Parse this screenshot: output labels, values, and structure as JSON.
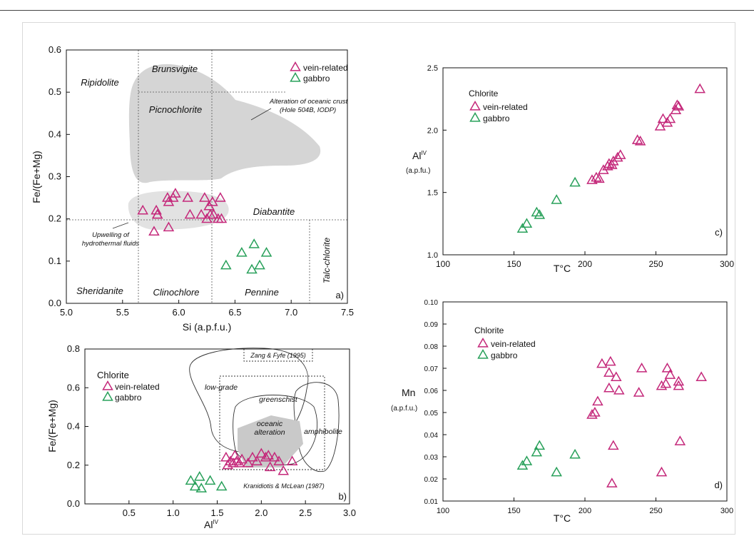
{
  "colors": {
    "vein": "#c4287a",
    "gabbro": "#28a05a",
    "field": "#d5d5d5",
    "frame": "#d9d9d9"
  },
  "chart_data": [
    {
      "id": "a",
      "type": "scatter",
      "panel_label": "a)",
      "xlabel": "Si (a.p.f.u.)",
      "ylabel": "Fe/(Fe+Mg)",
      "xlim": [
        5.0,
        7.5
      ],
      "ylim": [
        0.0,
        0.6
      ],
      "xticks": [
        "5.0",
        "5.5",
        "6.0",
        "6.5",
        "7.0",
        "7.5"
      ],
      "yticks": [
        "0.0",
        "0.1",
        "0.2",
        "0.3",
        "0.4",
        "0.5",
        "0.6"
      ],
      "legend": [
        "vein-related",
        "gabbro"
      ],
      "legend_position": "top-right",
      "field_labels": [
        "Ripidolite",
        "Brunsvigite",
        "Picnochlorite",
        "Diabantite",
        "Sheridanite",
        "Clinochlore",
        "Pennine",
        "Talc-chlorite"
      ],
      "annotations": [
        "Alteration of oceanic crust",
        "(Hole 504B, IODP)",
        "Upwelling of",
        "hydrothermal fluids"
      ],
      "series": [
        {
          "name": "vein-related",
          "x": [
            5.68,
            5.8,
            5.81,
            5.81,
            5.78,
            5.91,
            5.9,
            5.91,
            5.95,
            5.97,
            6.08,
            6.1,
            6.2,
            6.23,
            6.25,
            6.27,
            6.28,
            6.3,
            6.31,
            6.35,
            6.37,
            6.38
          ],
          "y": [
            0.22,
            0.22,
            0.21,
            0.21,
            0.17,
            0.18,
            0.25,
            0.24,
            0.25,
            0.26,
            0.25,
            0.21,
            0.21,
            0.25,
            0.2,
            0.23,
            0.21,
            0.24,
            0.21,
            0.2,
            0.25,
            0.2
          ]
        },
        {
          "name": "gabbro",
          "x": [
            6.42,
            6.56,
            6.65,
            6.67,
            6.72,
            6.78
          ],
          "y": [
            0.09,
            0.12,
            0.08,
            0.14,
            0.09,
            0.12
          ]
        }
      ]
    },
    {
      "id": "b",
      "type": "scatter",
      "panel_label": "b)",
      "xlabel": "Al",
      "xlabel_sup": "IV",
      "ylabel": "Fe/(Fe+Mg)",
      "xlim": [
        0.0,
        3.0
      ],
      "ylim": [
        0.0,
        0.8
      ],
      "xticks": [
        "0.5",
        "1.0",
        "1.5",
        "2.0",
        "2.5",
        "3.0"
      ],
      "yticks": [
        "0.0",
        "0.2",
        "0.4",
        "0.6",
        "0.8"
      ],
      "legend_title": "Chlorite",
      "legend": [
        "vein-related",
        "gabbro"
      ],
      "legend_position": "left",
      "field_labels": [
        "Zang & Fyfe (1995)",
        "low-grade",
        "greenschist",
        "oceanic",
        "alteration",
        "amphibolite",
        "Kranidiotis & McLean (1987)"
      ],
      "series": [
        {
          "name": "vein-related",
          "x": [
            1.6,
            1.62,
            1.65,
            1.68,
            1.7,
            1.72,
            1.75,
            1.78,
            1.85,
            1.9,
            1.95,
            2.0,
            2.05,
            2.08,
            2.1,
            2.15,
            2.2,
            2.25,
            2.35
          ],
          "y": [
            0.24,
            0.2,
            0.22,
            0.21,
            0.25,
            0.22,
            0.21,
            0.23,
            0.21,
            0.24,
            0.22,
            0.26,
            0.24,
            0.25,
            0.19,
            0.24,
            0.22,
            0.17,
            0.22
          ]
        },
        {
          "name": "gabbro",
          "x": [
            1.2,
            1.25,
            1.3,
            1.32,
            1.42,
            1.55
          ],
          "y": [
            0.12,
            0.09,
            0.14,
            0.08,
            0.12,
            0.09
          ]
        }
      ]
    },
    {
      "id": "c",
      "type": "scatter",
      "panel_label": "c)",
      "xlabel": "T°C",
      "ylabel": "Al",
      "ylabel_sup": "IV",
      "ylabel_unit": "(a.p.fu.)",
      "xlim": [
        100,
        300
      ],
      "ylim": [
        1.0,
        2.5
      ],
      "xticks": [
        "100",
        "150",
        "200",
        "250",
        "300"
      ],
      "yticks": [
        "1.0",
        "1.5",
        "2.0",
        "2.5"
      ],
      "legend_title": "Chlorite",
      "legend": [
        "vein-related",
        "gabbro"
      ],
      "legend_position": "top-left",
      "series": [
        {
          "name": "vein-related",
          "x": [
            205,
            208,
            210,
            213,
            216,
            217,
            219,
            220,
            223,
            225,
            237,
            239,
            253,
            255,
            258,
            260,
            264,
            265,
            266,
            281
          ],
          "y": [
            1.6,
            1.62,
            1.61,
            1.68,
            1.71,
            1.73,
            1.72,
            1.75,
            1.78,
            1.8,
            1.92,
            1.91,
            2.03,
            2.09,
            2.06,
            2.09,
            2.16,
            2.2,
            2.19,
            2.33
          ]
        },
        {
          "name": "gabbro",
          "x": [
            156,
            159,
            166,
            168,
            180,
            193
          ],
          "y": [
            1.21,
            1.25,
            1.34,
            1.32,
            1.44,
            1.58
          ]
        }
      ]
    },
    {
      "id": "d",
      "type": "scatter",
      "panel_label": "d)",
      "xlabel": "T°C",
      "ylabel": "Mn",
      "ylabel_unit": "(a.p.f.u.)",
      "xlim": [
        100,
        300
      ],
      "ylim": [
        0.01,
        0.1
      ],
      "xticks": [
        "100",
        "150",
        "200",
        "250",
        "300"
      ],
      "yticks": [
        "0.01",
        "0.02",
        "0.03",
        "0.04",
        "0.05",
        "0.06",
        "0.07",
        "0.08",
        "0.09",
        "0.10"
      ],
      "legend_title": "Chlorite",
      "legend": [
        "vein-related",
        "gabbro"
      ],
      "legend_position": "top-left",
      "series": [
        {
          "name": "vein-related",
          "x": [
            205,
            207,
            209,
            212,
            217,
            217,
            218,
            219,
            220,
            222,
            224,
            238,
            240,
            254,
            254,
            257,
            258,
            260,
            266,
            266,
            267,
            282
          ],
          "y": [
            0.049,
            0.05,
            0.055,
            0.072,
            0.068,
            0.061,
            0.073,
            0.018,
            0.035,
            0.066,
            0.06,
            0.059,
            0.07,
            0.062,
            0.023,
            0.063,
            0.07,
            0.067,
            0.062,
            0.064,
            0.037,
            0.066
          ]
        },
        {
          "name": "gabbro",
          "x": [
            156,
            159,
            166,
            168,
            180,
            193
          ],
          "y": [
            0.026,
            0.028,
            0.032,
            0.035,
            0.023,
            0.031
          ]
        }
      ]
    }
  ]
}
